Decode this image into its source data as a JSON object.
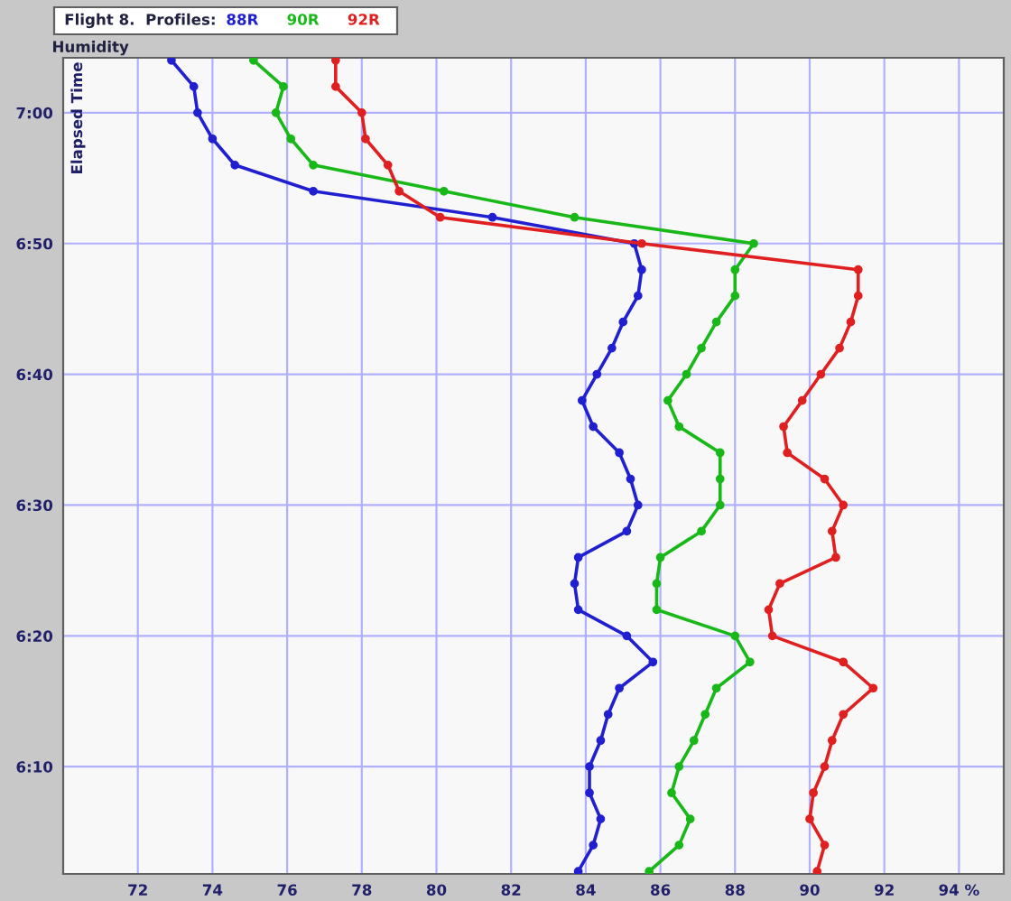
{
  "chart_data": {
    "type": "line",
    "title": "Flight 8.  Profiles:",
    "xlabel": "Humidity",
    "ylabel": "Elapsed Time",
    "xlim": [
      70,
      95.2
    ],
    "xticks": [
      72,
      74,
      76,
      78,
      80,
      82,
      84,
      86,
      88,
      90,
      92,
      {
        "value": 94,
        "label": "94 %"
      }
    ],
    "ylim": [
      6.03,
      7.07
    ],
    "yticks": [
      {
        "value": 6.1667,
        "label": "6:10"
      },
      {
        "value": 6.3333,
        "label": "6:20"
      },
      {
        "value": 6.5,
        "label": "6:30"
      },
      {
        "value": 6.6667,
        "label": "6:40"
      },
      {
        "value": 6.8333,
        "label": "6:50"
      },
      {
        "value": 7.0,
        "label": "7:00"
      }
    ],
    "grid": true,
    "marker": "circle",
    "line_style": "solid",
    "legend": "top",
    "series": [
      {
        "name": "88R",
        "color": "#2020d0",
        "x": [
          83.8,
          84.2,
          84.4,
          84.1,
          84.1,
          84.4,
          84.6,
          84.9,
          85.8,
          85.1,
          83.8,
          83.7,
          83.8,
          85.1,
          85.4,
          85.2,
          84.9,
          84.2,
          83.9,
          84.3,
          84.7,
          85.0,
          85.4,
          85.5,
          85.3,
          81.5,
          76.7,
          74.6,
          74.0,
          73.6,
          73.5,
          72.9
        ],
        "values": [
          6.0333,
          6.0667,
          6.1,
          6.1333,
          6.1667,
          6.2,
          6.2333,
          6.2667,
          6.3,
          6.3333,
          6.3667,
          6.4,
          6.4333,
          6.4667,
          6.5,
          6.5333,
          6.5667,
          6.6,
          6.6333,
          6.6667,
          6.7,
          6.7333,
          6.7667,
          6.8,
          6.8333,
          6.8667,
          6.9,
          6.9333,
          6.9667,
          7.0,
          7.0333,
          7.0667
        ]
      },
      {
        "name": "90R",
        "color": "#18b818",
        "x": [
          85.7,
          86.5,
          86.8,
          86.3,
          86.5,
          86.9,
          87.2,
          87.5,
          88.4,
          88.0,
          85.9,
          85.9,
          86.0,
          87.1,
          87.6,
          87.6,
          87.6,
          86.5,
          86.2,
          86.7,
          87.1,
          87.5,
          88.0,
          88.0,
          88.5,
          83.7,
          80.2,
          76.7,
          76.1,
          75.7,
          75.9,
          75.1
        ],
        "values": [
          6.0333,
          6.0667,
          6.1,
          6.1333,
          6.1667,
          6.2,
          6.2333,
          6.2667,
          6.3,
          6.3333,
          6.3667,
          6.4,
          6.4333,
          6.4667,
          6.5,
          6.5333,
          6.5667,
          6.6,
          6.6333,
          6.6667,
          6.7,
          6.7333,
          6.7667,
          6.8,
          6.8333,
          6.8667,
          6.9,
          6.9333,
          6.9667,
          7.0,
          7.0333,
          7.0667
        ]
      },
      {
        "name": "92R",
        "color": "#e02020",
        "x": [
          90.2,
          90.4,
          90.0,
          90.1,
          90.4,
          90.6,
          90.9,
          91.7,
          90.9,
          89.0,
          88.9,
          89.2,
          90.7,
          90.6,
          90.9,
          90.4,
          89.4,
          89.3,
          89.8,
          90.3,
          90.8,
          91.1,
          91.3,
          91.3,
          85.5,
          80.1,
          79.0,
          78.7,
          78.1,
          78.0,
          77.3,
          77.3
        ],
        "values": [
          6.0333,
          6.0667,
          6.1,
          6.1333,
          6.1667,
          6.2,
          6.2333,
          6.2667,
          6.3,
          6.3333,
          6.3667,
          6.4,
          6.4333,
          6.4667,
          6.5,
          6.5333,
          6.5667,
          6.6,
          6.6333,
          6.6667,
          6.7,
          6.7333,
          6.7667,
          6.8,
          6.8333,
          6.8667,
          6.9,
          6.9333,
          6.9667,
          7.0,
          7.0333,
          7.0667
        ]
      }
    ]
  }
}
